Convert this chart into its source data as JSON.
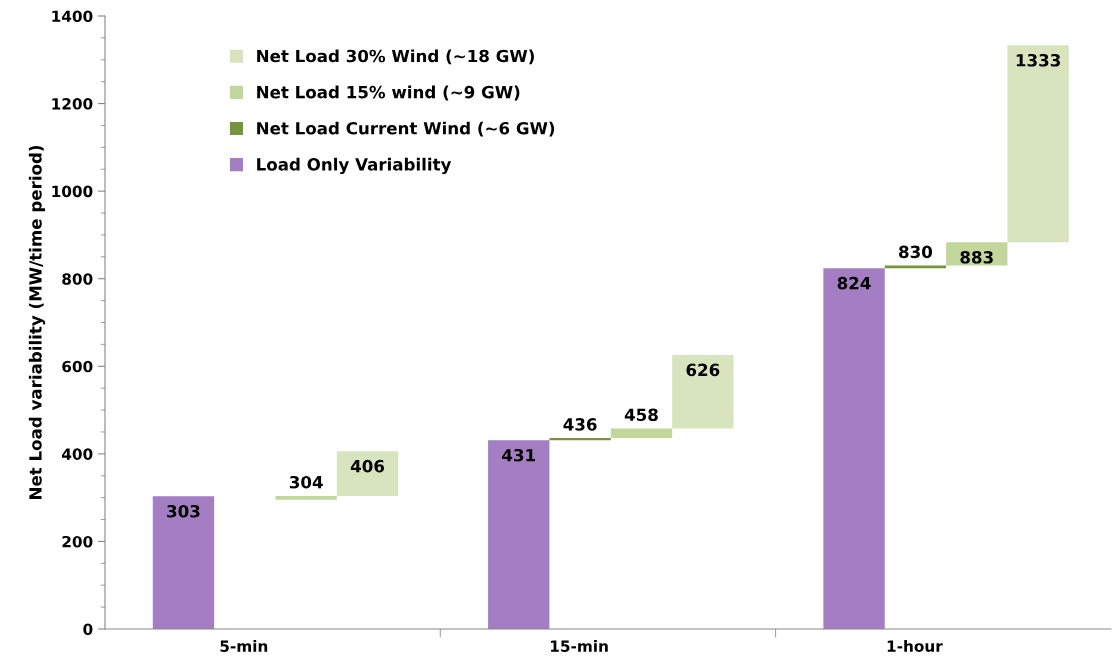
{
  "chart_data": {
    "type": "bar",
    "ylabel": "Net Load variability (MW/time period)",
    "categories": [
      "5-min",
      "15-min",
      "1-hour"
    ],
    "ylim": [
      0,
      1400
    ],
    "yticks": [
      0,
      200,
      400,
      600,
      800,
      1000,
      1200,
      1400
    ],
    "grid": false,
    "legend": "top left",
    "series": [
      {
        "name": "Load Only Variability",
        "color": "#a47ec2",
        "base": [
          0,
          0,
          0
        ],
        "values": [
          303,
          431,
          824
        ],
        "value_labels": [
          "303",
          "431",
          "824"
        ]
      },
      {
        "name": "Net Load Current Wind (~6 GW)",
        "color": "#77933c",
        "base": [
          null,
          431,
          824
        ],
        "values": [
          null,
          5,
          6
        ],
        "value_labels": [
          null,
          "436",
          "830"
        ]
      },
      {
        "name": "Net Load 15% wind (~9 GW)",
        "color": "#c3d69b",
        "base": [
          295,
          436,
          830
        ],
        "values": [
          9,
          22,
          53
        ],
        "value_labels": [
          "304",
          "458",
          "883"
        ]
      },
      {
        "name": "Net Load 30% Wind (~18 GW)",
        "color": "#d7e4bd",
        "base": [
          304,
          458,
          883
        ],
        "values": [
          102,
          168,
          450
        ],
        "value_labels": [
          "406",
          "626",
          "1333"
        ]
      }
    ]
  }
}
